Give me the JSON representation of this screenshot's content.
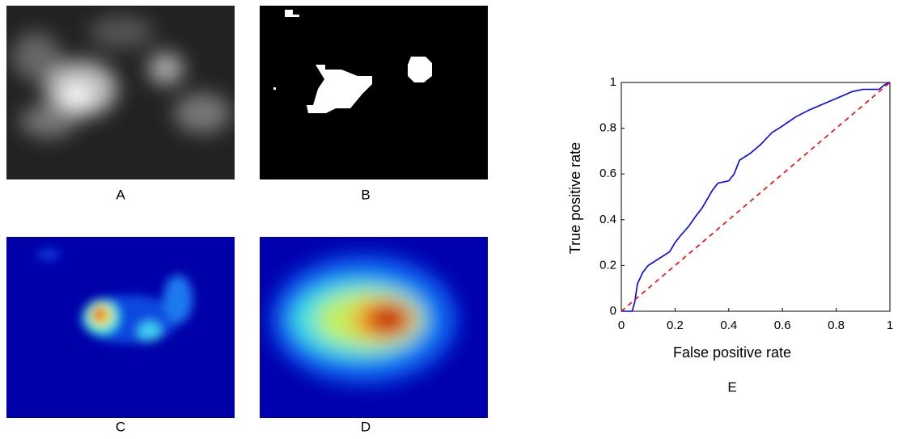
{
  "panels": [
    {
      "label": "A"
    },
    {
      "label": "B"
    },
    {
      "label": "C"
    },
    {
      "label": "D"
    }
  ],
  "chart_data": {
    "type": "line",
    "caption": "E",
    "xlabel": "False positive rate",
    "ylabel": "True positive rate",
    "xlim": [
      0,
      1
    ],
    "ylim": [
      0,
      1
    ],
    "xticks": [
      0,
      0.2,
      0.4,
      0.6,
      0.8,
      1
    ],
    "yticks": [
      0,
      0.2,
      0.4,
      0.6,
      0.8,
      1
    ],
    "series": [
      {
        "color": "#0000ff",
        "dashed": false,
        "x": [
          0,
          0.04,
          0.05,
          0.06,
          0.08,
          0.1,
          0.14,
          0.18,
          0.2,
          0.22,
          0.25,
          0.28,
          0.3,
          0.32,
          0.34,
          0.36,
          0.4,
          0.42,
          0.44,
          0.48,
          0.52,
          0.56,
          0.6,
          0.65,
          0.7,
          0.76,
          0.82,
          0.86,
          0.9,
          0.96,
          0.98,
          1
        ],
        "values": [
          0,
          0,
          0.04,
          0.12,
          0.17,
          0.2,
          0.23,
          0.26,
          0.3,
          0.33,
          0.37,
          0.42,
          0.45,
          0.49,
          0.53,
          0.56,
          0.57,
          0.6,
          0.66,
          0.69,
          0.73,
          0.78,
          0.81,
          0.85,
          0.88,
          0.91,
          0.94,
          0.96,
          0.97,
          0.97,
          0.99,
          1
        ]
      },
      {
        "color": "#ff0000",
        "dashed": true,
        "x": [
          0,
          1
        ],
        "values": [
          0,
          1
        ]
      }
    ]
  }
}
